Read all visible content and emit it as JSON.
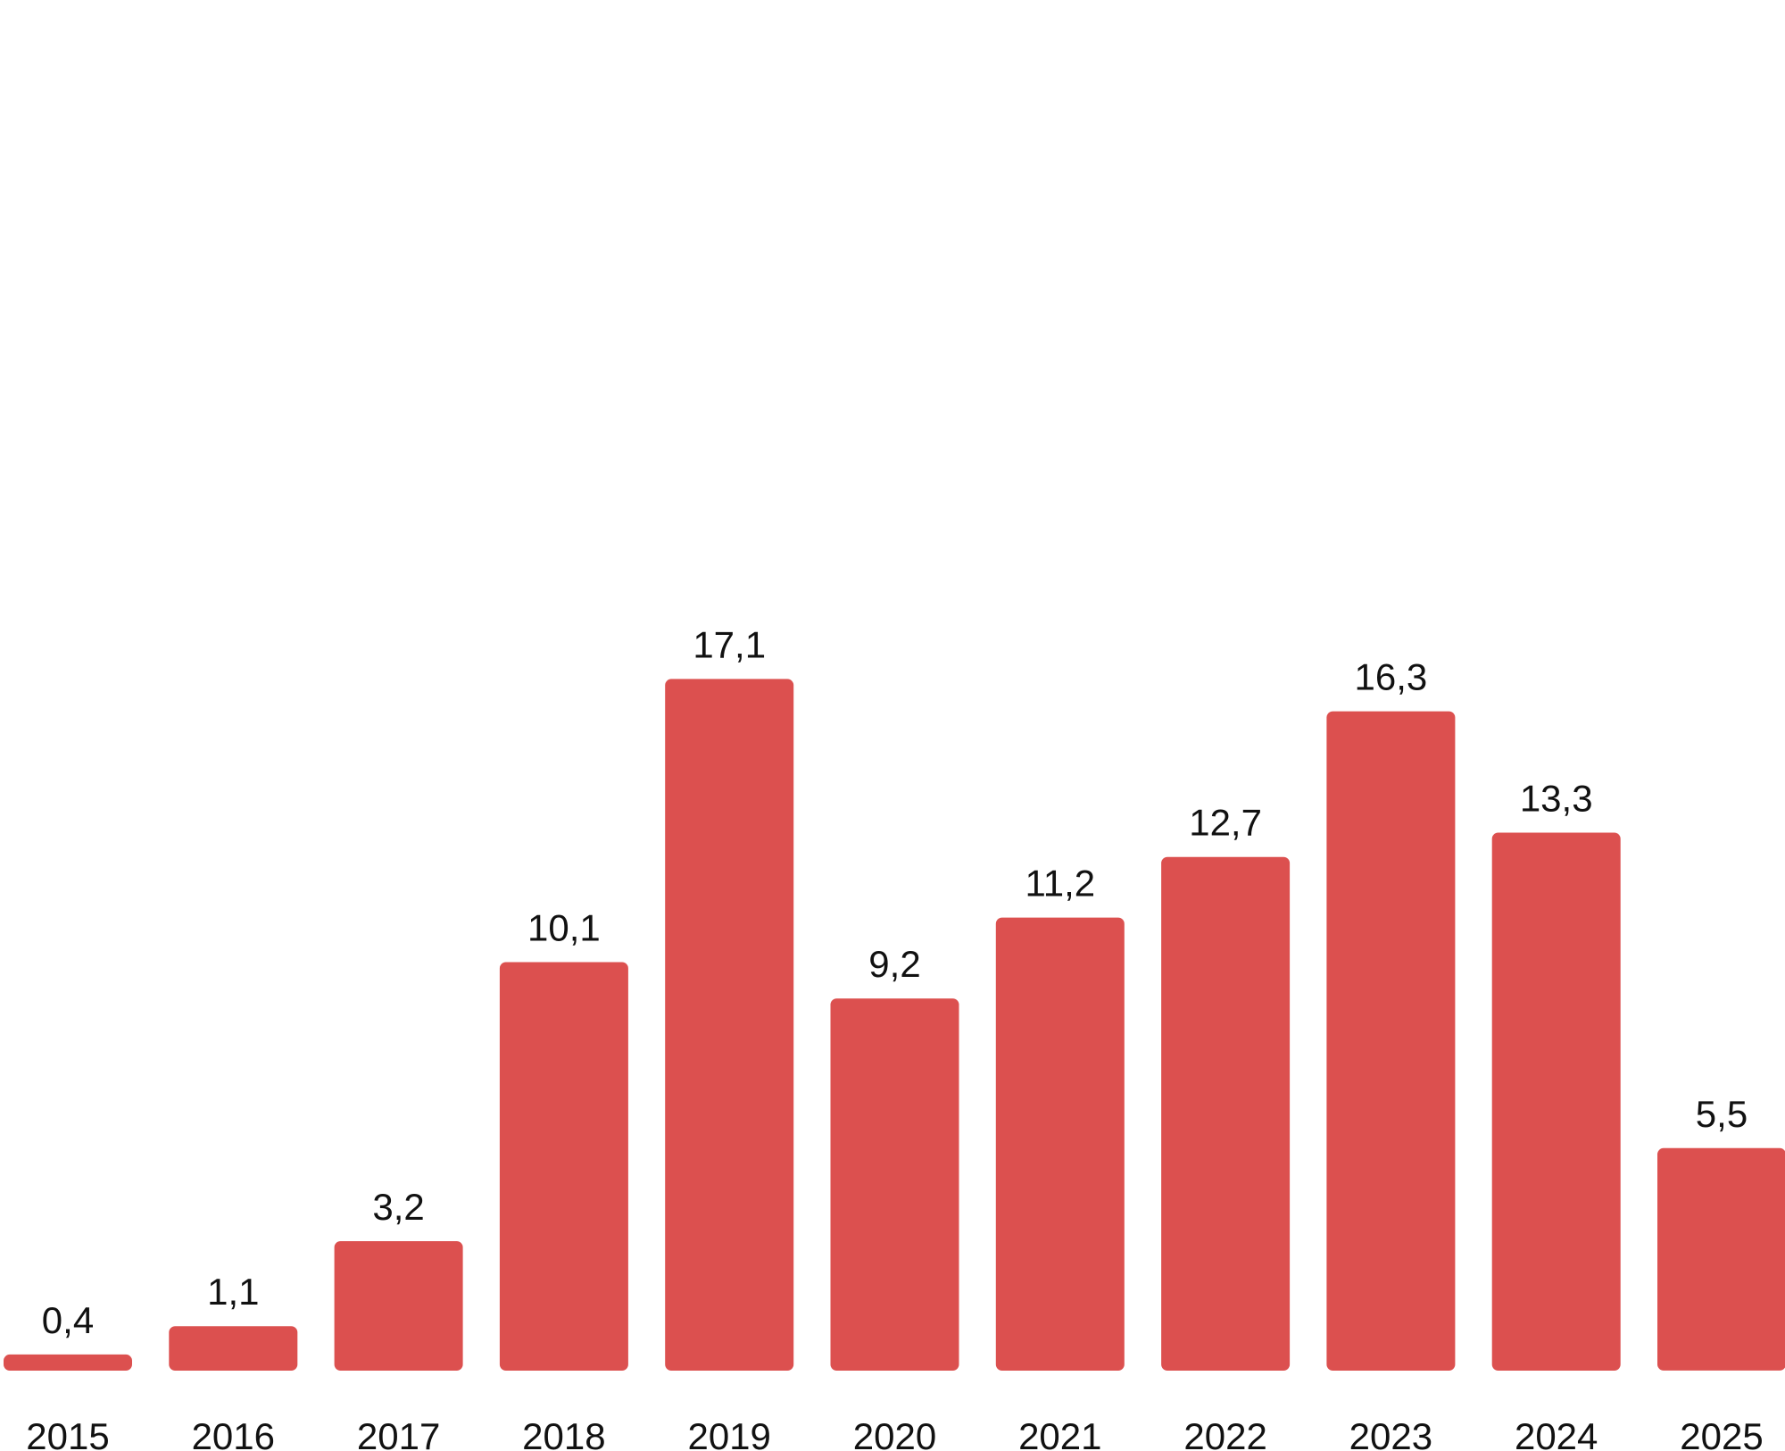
{
  "colors": {
    "bar": "#DC504F",
    "text": "#111111",
    "background": "#FFFFFF"
  },
  "chart_data": {
    "type": "bar",
    "title": "",
    "xlabel": "",
    "ylabel": "",
    "categories": [
      "2015",
      "2016",
      "2017",
      "2018",
      "2019",
      "2020",
      "2021",
      "2022",
      "2023",
      "2024",
      "2025"
    ],
    "values": [
      0.4,
      1.1,
      3.2,
      10.1,
      17.1,
      9.2,
      11.2,
      12.7,
      16.3,
      13.3,
      5.5
    ],
    "value_labels": [
      "0,4",
      "1,1",
      "3,2",
      "10,1",
      "17,1",
      "9,2",
      "11,2",
      "12,7",
      "16,3",
      "13,3",
      "5,5"
    ],
    "ylim": [
      0,
      30
    ],
    "grid": false,
    "legend": "none"
  }
}
